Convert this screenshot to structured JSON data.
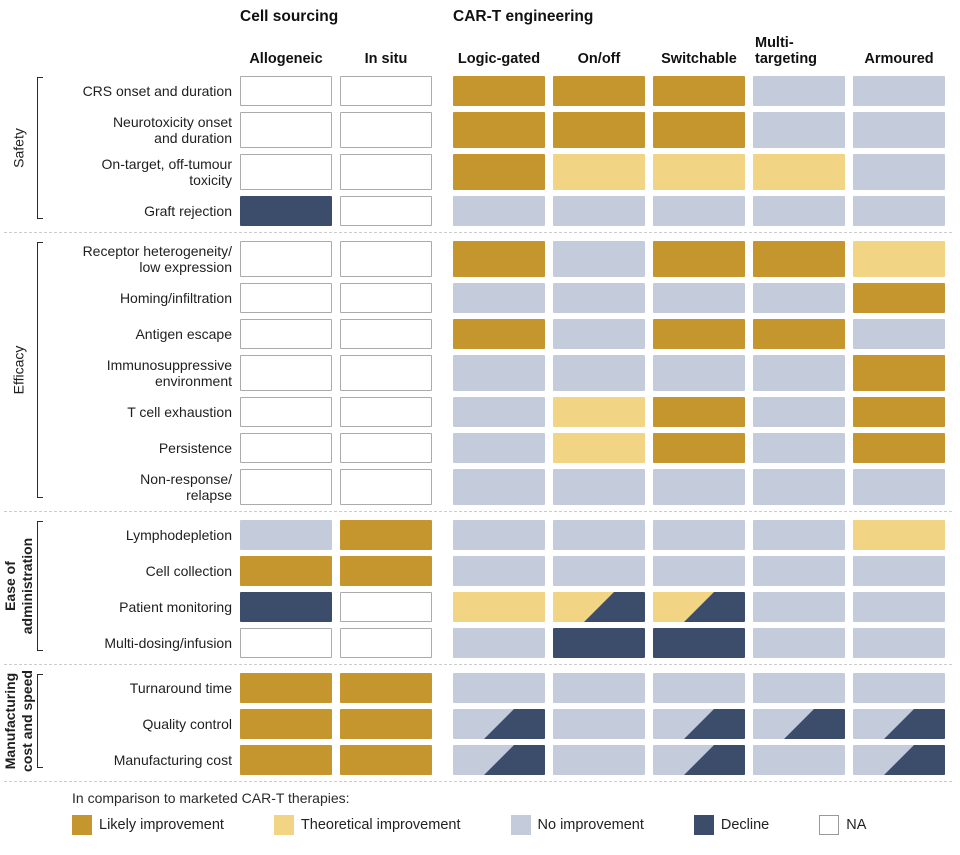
{
  "chart_data": {
    "type": "heatmap",
    "columns": [
      "Allogeneic",
      "In situ",
      "Logic-gated",
      "On/off",
      "Switchable",
      "Multi-\ntargeting",
      "Armoured"
    ],
    "column_groups": [
      {
        "label": "Cell sourcing",
        "columns": [
          "Allogeneic",
          "In situ"
        ]
      },
      {
        "label": "CAR-T engineering",
        "columns": [
          "Logic-gated",
          "On/off",
          "Switchable",
          "Multi-targeting",
          "Armoured"
        ]
      }
    ],
    "groups": [
      {
        "label": "Safety",
        "bold": false,
        "rows": [
          {
            "label": "CRS onset and duration",
            "cells": [
              "na",
              "na",
              "likely",
              "likely",
              "likely",
              "no",
              "no"
            ]
          },
          {
            "label": "Neurotoxicity onset\nand duration",
            "cells": [
              "na",
              "na",
              "likely",
              "likely",
              "likely",
              "no",
              "no"
            ]
          },
          {
            "label": "On-target, off-tumour\ntoxicity",
            "cells": [
              "na",
              "na",
              "likely",
              "theoretical",
              "theoretical",
              "theoretical",
              "no"
            ]
          },
          {
            "label": "Graft rejection",
            "cells": [
              "decline",
              "na",
              "no",
              "no",
              "no",
              "no",
              "no"
            ]
          }
        ]
      },
      {
        "label": "Efficacy",
        "bold": false,
        "rows": [
          {
            "label": "Receptor heterogeneity/\nlow expression",
            "cells": [
              "na",
              "na",
              "likely",
              "no",
              "likely",
              "likely",
              "theoretical"
            ]
          },
          {
            "label": "Homing/infiltration",
            "cells": [
              "na",
              "na",
              "no",
              "no",
              "no",
              "no",
              "likely"
            ]
          },
          {
            "label": "Antigen escape",
            "cells": [
              "na",
              "na",
              "likely",
              "no",
              "likely",
              "likely",
              "no"
            ]
          },
          {
            "label": "Immunosuppressive\nenvironment",
            "cells": [
              "na",
              "na",
              "no",
              "no",
              "no",
              "no",
              "likely"
            ]
          },
          {
            "label": "T cell exhaustion",
            "cells": [
              "na",
              "na",
              "no",
              "theoretical",
              "likely",
              "no",
              "likely"
            ]
          },
          {
            "label": "Persistence",
            "cells": [
              "na",
              "na",
              "no",
              "theoretical",
              "likely",
              "no",
              "likely"
            ]
          },
          {
            "label": "Non-response/\nrelapse",
            "cells": [
              "na",
              "na",
              "no",
              "no",
              "no",
              "no",
              "no"
            ]
          }
        ]
      },
      {
        "label": "Ease of\nadministration",
        "bold": true,
        "rows": [
          {
            "label": "Lymphodepletion",
            "cells": [
              "no",
              "likely",
              "no",
              "no",
              "no",
              "no",
              "theoretical"
            ]
          },
          {
            "label": "Cell collection",
            "cells": [
              "likely",
              "likely",
              "no",
              "no",
              "no",
              "no",
              "no"
            ]
          },
          {
            "label": "Patient monitoring",
            "cells": [
              "decline",
              "na",
              "theoretical",
              "theoretical/decline",
              "theoretical/decline",
              "no",
              "no"
            ]
          },
          {
            "label": "Multi-dosing/infusion",
            "cells": [
              "na",
              "na",
              "no",
              "decline",
              "decline",
              "no",
              "no"
            ]
          }
        ]
      },
      {
        "label": "Manufacturing\ncost and speed",
        "bold": true,
        "rows": [
          {
            "label": "Turnaround time",
            "cells": [
              "likely",
              "likely",
              "no",
              "no",
              "no",
              "no",
              "no"
            ]
          },
          {
            "label": "Quality control",
            "cells": [
              "likely",
              "likely",
              "no/decline",
              "no",
              "no/decline",
              "no/decline",
              "no/decline"
            ]
          },
          {
            "label": "Manufacturing cost",
            "cells": [
              "likely",
              "likely",
              "no/decline",
              "no",
              "no/decline",
              "no",
              "no/decline"
            ]
          }
        ]
      }
    ]
  },
  "legend": {
    "intro": "In comparison to marketed CAR-T therapies:",
    "items": [
      {
        "key": "likely",
        "label": "Likely improvement",
        "color": "#C5962E"
      },
      {
        "key": "theoretical",
        "label": "Theoretical improvement",
        "color": "#F2D485"
      },
      {
        "key": "no",
        "label": "No improvement",
        "color": "#C4CCDC"
      },
      {
        "key": "decline",
        "label": "Decline",
        "color": "#3C4C6B"
      },
      {
        "key": "na",
        "label": "NA",
        "color": "#FFFFFF"
      }
    ]
  }
}
